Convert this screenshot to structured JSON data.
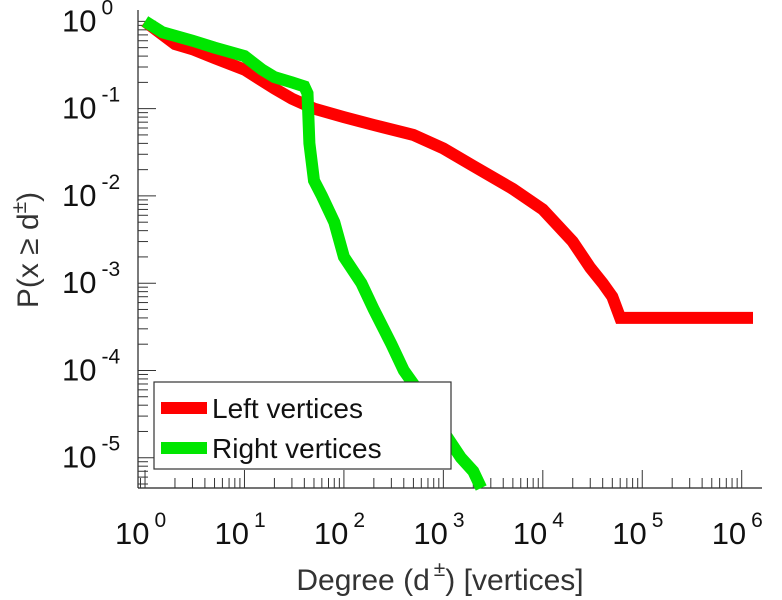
{
  "chart_data": {
    "type": "line",
    "title": "",
    "xlabel": {
      "base": "Degree (d",
      "exp": "±",
      "suffix": ") [vertices]"
    },
    "ylabel": {
      "base": "P(x ≥ d",
      "exp": "±",
      "suffix": ")"
    },
    "xscale": "log",
    "yscale": "log",
    "xlim": [
      0.85,
      1600000
    ],
    "ylim": [
      4.5e-06,
      1.35
    ],
    "xticks": [
      {
        "base": "10",
        "exp": "0",
        "value": 1
      },
      {
        "base": "10",
        "exp": "1",
        "value": 10
      },
      {
        "base": "10",
        "exp": "2",
        "value": 100
      },
      {
        "base": "10",
        "exp": "3",
        "value": 1000
      },
      {
        "base": "10",
        "exp": "4",
        "value": 10000
      },
      {
        "base": "10",
        "exp": "5",
        "value": 100000
      },
      {
        "base": "10",
        "exp": "6",
        "value": 1000000
      }
    ],
    "yticks": [
      {
        "base": "10",
        "exp": "0",
        "value": 1
      },
      {
        "base": "10",
        "exp": "-1",
        "value": 0.1
      },
      {
        "base": "10",
        "exp": "-2",
        "value": 0.01
      },
      {
        "base": "10",
        "exp": "-3",
        "value": 0.001
      },
      {
        "base": "10",
        "exp": "-4",
        "value": 0.0001
      },
      {
        "base": "10",
        "exp": "-5",
        "value": 1e-05
      }
    ],
    "grid": false,
    "legend_position": "bottom-left",
    "series": [
      {
        "name": "Left vertices",
        "color": "#ff0000",
        "x": [
          1,
          2,
          3,
          5,
          10,
          20,
          30,
          50,
          100,
          200,
          500,
          1000,
          2000,
          5000,
          10000,
          20000,
          30000,
          40000,
          50000,
          60000,
          1300000
        ],
        "y": [
          1,
          0.55,
          0.48,
          0.38,
          0.28,
          0.17,
          0.13,
          0.1,
          0.08,
          0.065,
          0.05,
          0.035,
          0.022,
          0.012,
          0.007,
          0.003,
          0.0015,
          0.001,
          0.0007,
          0.0004,
          0.0004
        ]
      },
      {
        "name": "Right vertices",
        "color": "#00e600",
        "x": [
          1,
          1.5,
          3,
          5,
          10,
          15,
          20,
          30,
          40,
          43,
          45,
          50,
          60,
          80,
          100,
          150,
          200,
          300,
          400,
          500,
          700,
          1000,
          1500,
          2000,
          2400
        ],
        "y": [
          1,
          0.75,
          0.6,
          0.5,
          0.4,
          0.28,
          0.23,
          0.2,
          0.18,
          0.15,
          0.04,
          0.015,
          0.01,
          0.005,
          0.002,
          0.001,
          0.0005,
          0.0002,
          0.0001,
          7e-05,
          4e-05,
          2e-05,
          1e-05,
          7e-06,
          4.5e-06
        ]
      }
    ]
  }
}
